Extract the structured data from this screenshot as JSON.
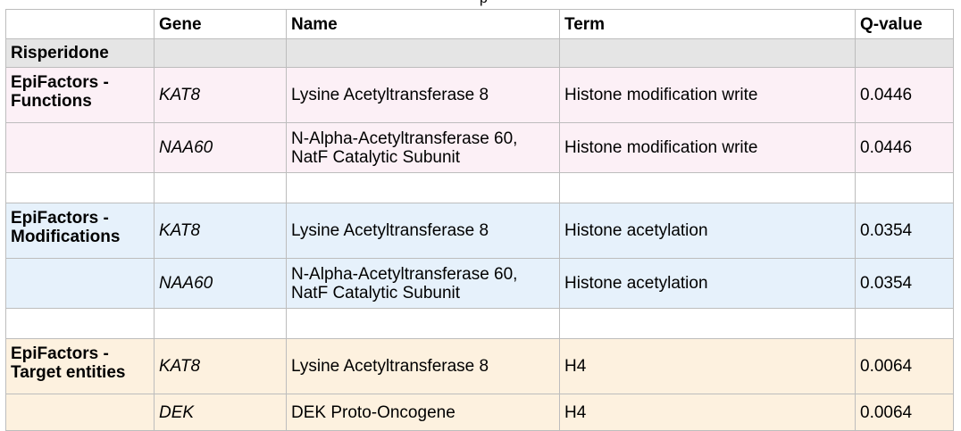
{
  "headers": {
    "blank": "",
    "gene": "Gene",
    "name": "Name",
    "term": "Term",
    "qvalue": "Q-value"
  },
  "drug": "Risperidone",
  "groups": [
    {
      "label": "EpiFactors - Functions",
      "color": "#fcf0f6",
      "rows": [
        {
          "gene": "KAT8",
          "name": "Lysine Acetyltransferase 8",
          "term": "Histone modification write",
          "qvalue": "0.0446"
        },
        {
          "gene": "NAA60",
          "name": "N-Alpha-Acetyltransferase 60, NatF Catalytic Subunit",
          "term": "Histone modification write",
          "qvalue": "0.0446"
        }
      ]
    },
    {
      "label": "EpiFactors - Modifications",
      "color": "#e6f1fb",
      "rows": [
        {
          "gene": "KAT8",
          "name": "Lysine Acetyltransferase 8",
          "term": "Histone acetylation",
          "qvalue": "0.0354"
        },
        {
          "gene": "NAA60",
          "name": "N-Alpha-Acetyltransferase 60, NatF Catalytic Subunit",
          "term": "Histone acetylation",
          "qvalue": "0.0354"
        }
      ]
    },
    {
      "label": "EpiFactors - Target entities",
      "color": "#fdf1df",
      "rows": [
        {
          "gene": "KAT8",
          "name": "Lysine Acetyltransferase 8",
          "term": "H4",
          "qvalue": "0.0064"
        },
        {
          "gene": "DEK",
          "name": "DEK Proto-Oncogene",
          "term": "H4",
          "qvalue": "0.0064"
        }
      ]
    }
  ]
}
